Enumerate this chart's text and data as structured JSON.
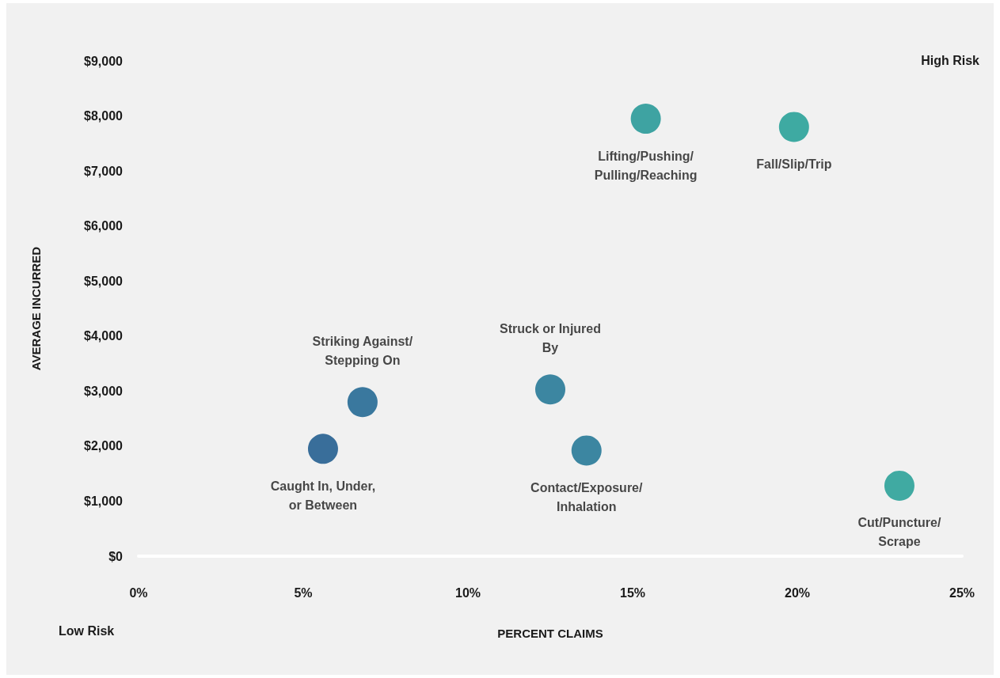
{
  "chart_data": {
    "type": "scatter",
    "xlabel": "PERCENT CLAIMS",
    "ylabel": "AVERAGE INCURRED",
    "xlim": [
      0,
      25
    ],
    "ylim": [
      0,
      9000
    ],
    "xticks": [
      {
        "value": 0,
        "label": "0%"
      },
      {
        "value": 5,
        "label": "5%"
      },
      {
        "value": 10,
        "label": "10%"
      },
      {
        "value": 15,
        "label": "15%"
      },
      {
        "value": 20,
        "label": "20%"
      },
      {
        "value": 25,
        "label": "25%"
      }
    ],
    "yticks": [
      {
        "value": 0,
        "label": "$0"
      },
      {
        "value": 1000,
        "label": "$1,000"
      },
      {
        "value": 2000,
        "label": "$2,000"
      },
      {
        "value": 3000,
        "label": "$3,000"
      },
      {
        "value": 4000,
        "label": "$4,000"
      },
      {
        "value": 5000,
        "label": "$5,000"
      },
      {
        "value": 6000,
        "label": "$6,000"
      },
      {
        "value": 7000,
        "label": "$7,000"
      },
      {
        "value": 8000,
        "label": "$8,000"
      },
      {
        "value": 9000,
        "label": "$9,000"
      }
    ],
    "grid": false,
    "legend": false,
    "marker": "circle",
    "annotations": [
      "High Risk",
      "Low Risk"
    ],
    "series": [
      {
        "name": "Lifting/Pushing/Pulling/Reaching",
        "color": "#11908f",
        "x": [
          15.4
        ],
        "values": [
          7950
        ]
      },
      {
        "name": "Fall/Slip/Trip",
        "color": "#12998f",
        "x": [
          19.9
        ],
        "values": [
          7800
        ]
      },
      {
        "name": "Striking Against/Stepping On",
        "color": "#0d5a8a",
        "x": [
          6.8
        ],
        "values": [
          2800
        ]
      },
      {
        "name": "Caught In, Under, or Between",
        "color": "#0b4d84",
        "x": [
          5.6
        ],
        "values": [
          1950
        ]
      },
      {
        "name": "Struck or Injured By",
        "color": "#0f6b8d",
        "x": [
          12.5
        ],
        "values": [
          3030
        ]
      },
      {
        "name": "Contact/Exposure/Inhalation",
        "color": "#0f6b8d",
        "x": [
          13.6
        ],
        "values": [
          1920
        ]
      },
      {
        "name": "Cut/Puncture/Scrape",
        "color": "#14998f",
        "x": [
          23.1
        ],
        "values": [
          1280
        ]
      }
    ]
  }
}
